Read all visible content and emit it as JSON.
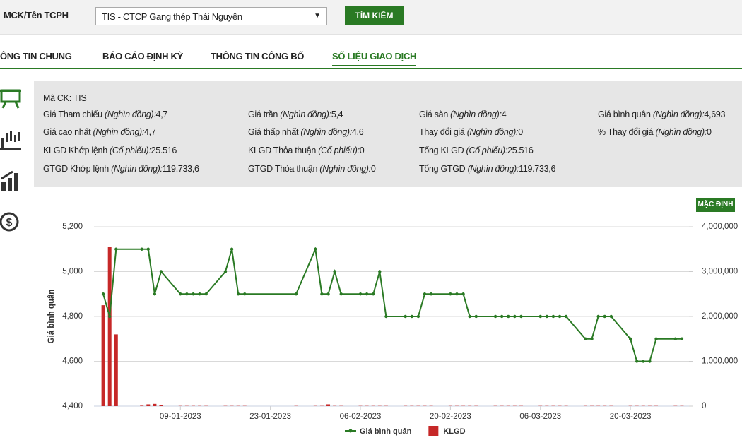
{
  "search": {
    "label": "MCK/Tên TCPH",
    "select": "TIS - CTCP Gang thép Thái Nguyên",
    "button": "TÌM KIẾM"
  },
  "tabs": [
    "ÔNG TIN CHUNG",
    "BÁO CÁO ĐỊNH KỲ",
    "THÔNG TIN CÔNG BỐ",
    "SỐ LIỆU GIAO DỊCH"
  ],
  "info": {
    "ticker": {
      "label": "Mã CK:",
      "value": "TIS"
    },
    "rows": [
      [
        {
          "label": "Giá Tham chiếu",
          "unit": "(Nghìn đồng):",
          "value": "4,7"
        },
        {
          "label": "Giá trần",
          "unit": "(Nghìn đồng):",
          "value": "5,4"
        },
        {
          "label": "Giá sàn",
          "unit": "(Nghìn đồng):",
          "value": "4"
        },
        {
          "label": "Giá bình quân",
          "unit": "(Nghìn đồng):",
          "value": "4,693"
        }
      ],
      [
        {
          "label": "Giá cao nhất",
          "unit": "(Nghìn đồng):",
          "value": "4,7"
        },
        {
          "label": "Giá thấp nhất",
          "unit": "(Nghìn đồng):",
          "value": "4,6"
        },
        {
          "label": "Thay đổi giá",
          "unit": "(Nghìn đồng):",
          "value": "0"
        },
        {
          "label": "% Thay đổi giá",
          "unit": "(Nghìn đồng):",
          "value": "0"
        }
      ],
      [
        {
          "label": "KLGD Khớp lệnh",
          "unit": "(Cổ phiếu):",
          "value": "25.516"
        },
        {
          "label": "KLGD Thỏa thuận",
          "unit": "(Cổ phiếu):",
          "value": "0"
        },
        {
          "label": "Tổng KLGD",
          "unit": "(Cổ phiếu):",
          "value": "25.516"
        }
      ],
      [
        {
          "label": "GTGD Khớp lệnh",
          "unit": "(Nghìn đồng):",
          "value": "119.733,6"
        },
        {
          "label": "GTGD Thỏa thuận",
          "unit": "(Nghìn đồng):",
          "value": "0"
        },
        {
          "label": "Tổng GTGD",
          "unit": "(Nghìn đồng):",
          "value": "119.733,6"
        }
      ]
    ]
  },
  "chart_data": {
    "type": "line",
    "button": "MẶC ĐỊNH",
    "ylabel": "Giá bình quân",
    "x": [
      "28-12-2022",
      "29-12-2022",
      "30-12-2022",
      "03-01-2023",
      "04-01-2023",
      "05-01-2023",
      "06-01-2023",
      "09-01-2023",
      "10-01-2023",
      "11-01-2023",
      "12-01-2023",
      "13-01-2023",
      "16-01-2023",
      "17-01-2023",
      "18-01-2023",
      "19-01-2023",
      "27-01-2023",
      "30-01-2023",
      "31-01-2023",
      "01-02-2023",
      "02-02-2023",
      "03-02-2023",
      "06-02-2023",
      "07-02-2023",
      "08-02-2023",
      "09-02-2023",
      "10-02-2023",
      "13-02-2023",
      "14-02-2023",
      "15-02-2023",
      "16-02-2023",
      "17-02-2023",
      "20-02-2023",
      "21-02-2023",
      "22-02-2023",
      "23-02-2023",
      "24-02-2023",
      "27-02-2023",
      "28-02-2023",
      "01-03-2023",
      "02-03-2023",
      "03-03-2023",
      "06-03-2023",
      "07-03-2023",
      "08-03-2023",
      "09-03-2023",
      "10-03-2023",
      "13-03-2023",
      "14-03-2023",
      "15-03-2023",
      "16-03-2023",
      "17-03-2023",
      "20-03-2023",
      "21-03-2023",
      "22-03-2023",
      "23-03-2023",
      "24-03-2023",
      "27-03-2023",
      "28-03-2023"
    ],
    "series": [
      {
        "name": "KLGD",
        "type": "bar",
        "axis": "y2",
        "color": "#c62828",
        "values": [
          2250000,
          3550000,
          1600000,
          10000,
          40000,
          50000,
          30000,
          5000,
          5000,
          5000,
          5000,
          5000,
          5000,
          5000,
          5000,
          5000,
          5000,
          5000,
          5000,
          40000,
          5000,
          5000,
          5000,
          5000,
          5000,
          5000,
          5000,
          5000,
          5000,
          5000,
          5000,
          5000,
          5000,
          5000,
          5000,
          5000,
          5000,
          5000,
          5000,
          5000,
          5000,
          5000,
          5000,
          5000,
          5000,
          5000,
          5000,
          5000,
          5000,
          5000,
          5000,
          5000,
          5000,
          5000,
          5000,
          5000,
          5000,
          5000,
          5000
        ]
      },
      {
        "name": "Giá bình quân",
        "type": "line",
        "color": "#2a7a24",
        "values": [
          4900,
          4800,
          5100,
          5100,
          5100,
          4900,
          5000,
          4900,
          4900,
          4900,
          4900,
          4900,
          5000,
          5100,
          4900,
          4900,
          4900,
          5100,
          4900,
          4900,
          5000,
          4900,
          4900,
          4900,
          4900,
          5000,
          4800,
          4800,
          4800,
          4800,
          4900,
          4900,
          4900,
          4900,
          4900,
          4800,
          4800,
          4800,
          4800,
          4800,
          4800,
          4800,
          4800,
          4800,
          4800,
          4800,
          4800,
          4700,
          4700,
          4800,
          4800,
          4800,
          4700,
          4600,
          4600,
          4600,
          4700,
          4700,
          4700
        ]
      }
    ],
    "xlim": [
      "27-12-2022",
      "29-03-2023"
    ],
    "xticks": [
      "09-01-2023",
      "23-01-2023",
      "06-02-2023",
      "20-02-2023",
      "06-03-2023",
      "20-03-2023"
    ],
    "ylim": [
      4400,
      5200
    ],
    "yticks": [
      {
        "value": 5200,
        "label": "5,200"
      },
      {
        "value": 5000,
        "label": "5,000"
      },
      {
        "value": 4800,
        "label": "4,800"
      },
      {
        "value": 4600,
        "label": "4,600"
      },
      {
        "value": 4400,
        "label": "4,400"
      }
    ],
    "y2lim": [
      0,
      4000000
    ],
    "y2ticks": [
      {
        "value": 4000000,
        "label": "4,000,000"
      },
      {
        "value": 3000000,
        "label": "3,000,000"
      },
      {
        "value": 2000000,
        "label": "2,000,000"
      },
      {
        "value": 1000000,
        "label": "1,000,000"
      },
      0
    ],
    "grid": true
  }
}
